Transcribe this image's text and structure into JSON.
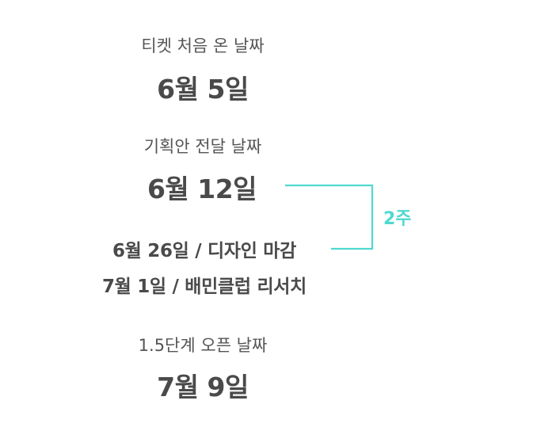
{
  "colors": {
    "text": "#4a4a4a",
    "label": "#555555",
    "accent": "#4fd8d0"
  },
  "milestones": [
    {
      "label": "티켓 처음 온 날짜",
      "date": "6월 5일"
    },
    {
      "label": "기획안 전달 날짜",
      "date": "6월 12일"
    },
    {
      "label": "1.5단계 오픈 날짜",
      "date": "7월 9일"
    }
  ],
  "events": [
    "6월 26일 / 디자인 마감",
    "7월 1일 / 배민클럽 리서치"
  ],
  "interval": {
    "label": "2주"
  }
}
